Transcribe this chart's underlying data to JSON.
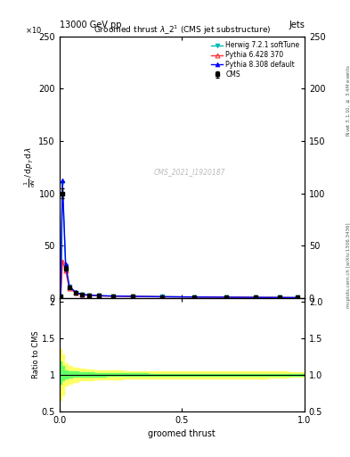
{
  "title_top": "13000 GeV pp",
  "title_right": "Jets",
  "plot_title": "Groomed thrust $\\lambda\\_2^1$ (CMS jet substructure)",
  "watermark": "CMS_2021_I1920187",
  "xlabel": "groomed thrust",
  "ylabel_ratio": "Ratio to CMS",
  "right_label_top": "Rivet 3.1.10, $\\geq$ 3.4M events",
  "right_label_bottom": "mcplots.cern.ch [arXiv:1306.3436]",
  "ylim_main": [
    0,
    250
  ],
  "ylim_ratio": [
    0.5,
    2.05
  ],
  "yticks_main": [
    0,
    50,
    100,
    150,
    200,
    250
  ],
  "yticks_ratio": [
    0.5,
    1.0,
    1.5,
    2.0
  ],
  "xlim": [
    0.0,
    1.0
  ],
  "xticks": [
    0.0,
    0.5,
    1.0
  ],
  "cms_x": [
    0.005,
    0.012,
    0.025,
    0.04,
    0.065,
    0.09,
    0.12,
    0.16,
    0.22,
    0.3,
    0.42,
    0.55,
    0.68,
    0.8,
    0.9,
    0.97
  ],
  "cms_y": [
    1.0,
    100.0,
    28.0,
    9.5,
    4.5,
    3.0,
    2.2,
    1.8,
    1.5,
    1.2,
    0.9,
    0.7,
    0.5,
    0.3,
    0.2,
    0.1
  ],
  "cms_yerr": [
    0.2,
    5.0,
    2.0,
    0.8,
    0.4,
    0.3,
    0.2,
    0.15,
    0.12,
    0.1,
    0.08,
    0.06,
    0.05,
    0.03,
    0.02,
    0.02
  ],
  "herwig_x": [
    0.005,
    0.012,
    0.025,
    0.04,
    0.065,
    0.09,
    0.12,
    0.16,
    0.22,
    0.3,
    0.42,
    0.55,
    0.68,
    0.8,
    0.9,
    0.97
  ],
  "herwig_y": [
    1.0,
    110.0,
    30.0,
    10.5,
    5.0,
    3.2,
    2.4,
    1.9,
    1.6,
    1.3,
    1.0,
    0.75,
    0.55,
    0.32,
    0.21,
    0.1
  ],
  "pythia6_x": [
    0.005,
    0.012,
    0.025,
    0.04,
    0.065,
    0.09,
    0.12,
    0.16,
    0.22,
    0.3,
    0.42,
    0.55,
    0.68,
    0.8,
    0.9,
    0.97
  ],
  "pythia6_y": [
    1.0,
    35.0,
    26.0,
    9.0,
    4.7,
    3.0,
    2.2,
    1.8,
    1.5,
    1.2,
    0.9,
    0.7,
    0.5,
    0.3,
    0.2,
    0.1
  ],
  "pythia8_x": [
    0.005,
    0.012,
    0.025,
    0.04,
    0.065,
    0.09,
    0.12,
    0.16,
    0.22,
    0.3,
    0.42,
    0.55,
    0.68,
    0.8,
    0.9,
    0.97
  ],
  "pythia8_y": [
    1.0,
    112.0,
    32.0,
    11.0,
    5.5,
    3.3,
    2.5,
    2.0,
    1.65,
    1.35,
    1.0,
    0.75,
    0.55,
    0.32,
    0.21,
    0.1
  ],
  "herwig_color": "#00BBBB",
  "pythia6_color": "#FF3333",
  "pythia8_color": "#0000FF",
  "cms_color": "#000000",
  "ylabel_main_lines": [
    "mathrm d$^2$N",
    "mathrm d p$_T$ mathrm d lambda"
  ],
  "background_color": "#FFFFFF"
}
